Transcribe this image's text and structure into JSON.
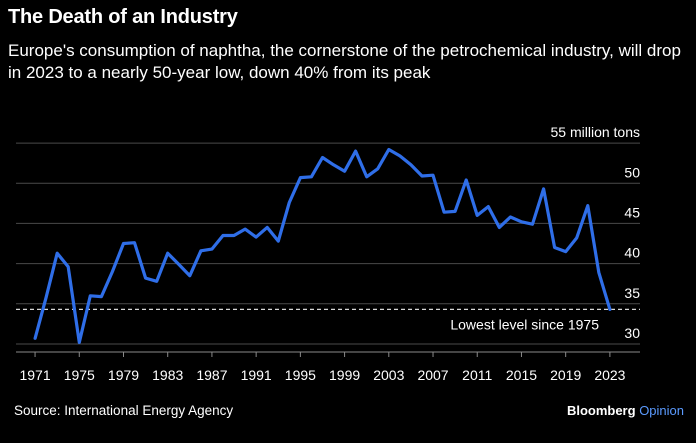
{
  "title": "The Death of an Industry",
  "subtitle": "Europe's consumption of naphtha, the cornerstone of the petrochemical industry, will drop in 2023 to a nearly 50-year low, down 40% from its peak",
  "source": "Source: International Energy Agency",
  "brand": {
    "name": "Bloomberg",
    "suffix": "Opinion"
  },
  "colors": {
    "line": "#2f6ee8",
    "grid": "#4a4a4a",
    "accent": "#5b9bff"
  },
  "chart_data": {
    "type": "line",
    "unit_label": "55 million tons",
    "annotation": "Lowest level since 1975",
    "reference_value": 34.3,
    "y_ticks": [
      30,
      35,
      40,
      45,
      50,
      55
    ],
    "x_ticks": [
      1971,
      1975,
      1979,
      1983,
      1987,
      1991,
      1995,
      1999,
      2003,
      2007,
      2011,
      2015,
      2019,
      2023
    ],
    "xlim": [
      1970,
      2025
    ],
    "ylim": [
      29,
      57
    ],
    "series": [
      {
        "name": "Naphtha consumption (million tons)",
        "x": [
          1971,
          1972,
          1973,
          1974,
          1975,
          1976,
          1977,
          1978,
          1979,
          1980,
          1981,
          1982,
          1983,
          1984,
          1985,
          1986,
          1987,
          1988,
          1989,
          1990,
          1991,
          1992,
          1993,
          1994,
          1995,
          1996,
          1997,
          1998,
          1999,
          2000,
          2001,
          2002,
          2003,
          2004,
          2005,
          2006,
          2007,
          2008,
          2009,
          2010,
          2011,
          2012,
          2013,
          2014,
          2015,
          2016,
          2017,
          2018,
          2019,
          2020,
          2021,
          2022,
          2023
        ],
        "values": [
          30.7,
          35.8,
          41.3,
          39.6,
          30.2,
          36.0,
          35.9,
          39.0,
          42.5,
          42.6,
          38.2,
          37.8,
          41.3,
          39.9,
          38.5,
          41.6,
          41.8,
          43.5,
          43.5,
          44.3,
          43.3,
          44.5,
          42.8,
          47.6,
          50.7,
          50.8,
          53.2,
          52.3,
          51.5,
          54.0,
          50.8,
          51.8,
          54.2,
          53.4,
          52.3,
          50.9,
          51.0,
          46.4,
          46.5,
          50.4,
          46.0,
          47.1,
          44.5,
          45.8,
          45.2,
          44.9,
          49.3,
          42.0,
          41.5,
          43.2,
          47.2,
          38.9,
          34.3
        ]
      }
    ]
  }
}
